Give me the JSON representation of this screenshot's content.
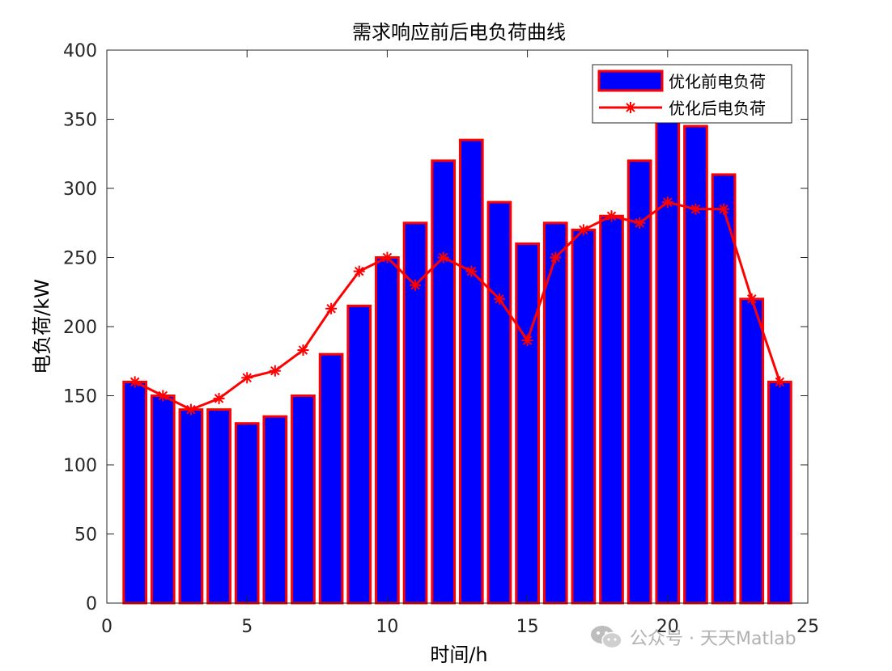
{
  "chart_data": {
    "type": "bar",
    "title": "需求响应前后电负荷曲线",
    "xlabel": "时间/h",
    "ylabel": "电负荷/kW",
    "xlim": [
      0,
      25
    ],
    "ylim": [
      0,
      400
    ],
    "xticks": [
      0,
      5,
      10,
      15,
      20,
      25
    ],
    "yticks": [
      0,
      50,
      100,
      150,
      200,
      250,
      300,
      350,
      400
    ],
    "x": [
      1,
      2,
      3,
      4,
      5,
      6,
      7,
      8,
      9,
      10,
      11,
      12,
      13,
      14,
      15,
      16,
      17,
      18,
      19,
      20,
      21,
      22,
      23,
      24
    ],
    "series": [
      {
        "name": "优化前电负荷",
        "type": "bar",
        "fill": "#0000ff",
        "edge": "#ff0000",
        "values": [
          160,
          150,
          140,
          140,
          130,
          135,
          150,
          180,
          215,
          250,
          275,
          320,
          335,
          290,
          260,
          275,
          270,
          280,
          320,
          350,
          345,
          310,
          220,
          160
        ]
      },
      {
        "name": "优化后电负荷",
        "type": "line",
        "marker": "asterisk",
        "color": "#ff0000",
        "values": [
          160,
          150,
          140,
          148,
          163,
          168,
          183,
          213,
          240,
          250,
          230,
          250,
          240,
          220,
          190,
          250,
          270,
          280,
          275,
          290,
          285,
          285,
          220,
          160
        ]
      }
    ],
    "legend_position": "top-right",
    "grid": false
  },
  "watermark": {
    "text": "公众号 · 天天Matlab",
    "icon": "wechat-icon"
  }
}
